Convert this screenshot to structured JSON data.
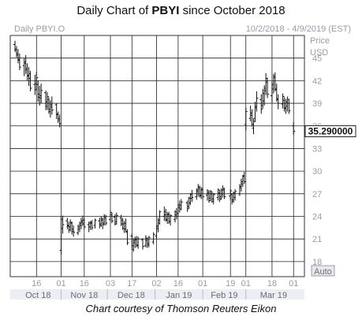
{
  "title": {
    "prefix": "Daily Chart of ",
    "ticker": "PBYI",
    "suffix": " since October 2018"
  },
  "caption": "Chart courtesy of Thomson Reuters Eikon",
  "chart_data": {
    "type": "ohlc",
    "symbol_label": "Daily PBYI.O",
    "date_range": "10/2/2018 - 4/9/2019 (EST)",
    "ylabel": "Price",
    "yunit": "USD",
    "ylim": [
      16,
      48
    ],
    "y_ticks": [
      18,
      21,
      24,
      27,
      30,
      33,
      36,
      39,
      42,
      45
    ],
    "last_price": "35.290000",
    "last_value": 35.29,
    "auto_label": "Auto",
    "x_day_ticks": [
      "16",
      "01",
      "16",
      "03",
      "17",
      "02",
      "16",
      "01",
      "19",
      "01",
      "18",
      "01"
    ],
    "x_month_labels": [
      "Oct 18",
      "Nov 18",
      "Dec 18",
      "Jan 19",
      "Feb 19",
      "Mar 19"
    ],
    "grid": true,
    "series": [
      {
        "x": [
          "2018-10-02",
          "2018-10-03",
          "2018-10-04",
          "2018-10-05",
          "2018-10-08",
          "2018-10-09",
          "2018-10-10",
          "2018-10-11",
          "2018-10-12",
          "2018-10-15",
          "2018-10-16",
          "2018-10-17",
          "2018-10-18",
          "2018-10-19",
          "2018-10-22",
          "2018-10-23",
          "2018-10-24",
          "2018-10-25",
          "2018-10-26",
          "2018-10-29",
          "2018-10-30",
          "2018-10-31",
          "2018-11-01",
          "2018-11-02",
          "2018-11-05",
          "2018-11-06",
          "2018-11-07",
          "2018-11-08",
          "2018-11-09",
          "2018-11-12",
          "2018-11-13",
          "2018-11-14",
          "2018-11-15",
          "2018-11-16",
          "2018-11-19",
          "2018-11-20",
          "2018-11-21",
          "2018-11-23",
          "2018-11-26",
          "2018-11-27",
          "2018-11-28",
          "2018-11-29",
          "2018-11-30",
          "2018-12-03",
          "2018-12-04",
          "2018-12-06",
          "2018-12-07",
          "2018-12-10",
          "2018-12-11",
          "2018-12-12",
          "2018-12-13",
          "2018-12-14",
          "2018-12-17",
          "2018-12-18",
          "2018-12-19",
          "2018-12-20",
          "2018-12-21",
          "2018-12-24",
          "2018-12-26",
          "2018-12-27",
          "2018-12-28",
          "2018-12-31",
          "2019-01-02",
          "2019-01-03",
          "2019-01-04",
          "2019-01-07",
          "2019-01-08",
          "2019-01-09",
          "2019-01-10",
          "2019-01-11",
          "2019-01-14",
          "2019-01-15",
          "2019-01-16",
          "2019-01-17",
          "2019-01-18",
          "2019-01-22",
          "2019-01-23",
          "2019-01-24",
          "2019-01-25",
          "2019-01-28",
          "2019-01-29",
          "2019-01-30",
          "2019-01-31",
          "2019-02-01",
          "2019-02-04",
          "2019-02-05",
          "2019-02-06",
          "2019-02-07",
          "2019-02-08",
          "2019-02-11",
          "2019-02-12",
          "2019-02-13",
          "2019-02-14",
          "2019-02-15",
          "2019-02-19",
          "2019-02-20",
          "2019-02-21",
          "2019-02-22",
          "2019-02-25",
          "2019-02-26",
          "2019-02-27",
          "2019-02-28",
          "2019-03-01",
          "2019-03-04",
          "2019-03-05",
          "2019-03-06",
          "2019-03-07",
          "2019-03-08",
          "2019-03-11",
          "2019-03-12",
          "2019-03-13",
          "2019-03-14",
          "2019-03-15",
          "2019-03-18",
          "2019-03-19",
          "2019-03-20",
          "2019-03-21",
          "2019-03-22",
          "2019-03-25",
          "2019-03-26",
          "2019-03-27",
          "2019-03-28",
          "2019-03-29",
          "2019-04-01"
        ],
        "high": [
          47.3,
          46.6,
          46.2,
          45.6,
          45.0,
          45.4,
          44.3,
          43.8,
          43.3,
          42.8,
          43.2,
          42.0,
          41.3,
          41.6,
          40.7,
          40.5,
          39.8,
          39.4,
          39.9,
          39.0,
          37.9,
          37.5,
          24.0,
          24.1,
          23.8,
          23.3,
          23.6,
          23.3,
          22.8,
          22.9,
          23.3,
          23.8,
          24.1,
          23.8,
          23.3,
          23.4,
          23.5,
          23.7,
          23.8,
          24.0,
          23.8,
          24.3,
          24.2,
          24.8,
          24.5,
          24.3,
          24.5,
          24.2,
          23.8,
          23.4,
          23.7,
          22.3,
          21.7,
          21.1,
          21.3,
          21.4,
          21.3,
          21.1,
          21.5,
          21.2,
          21.4,
          21.9,
          22.9,
          23.8,
          24.8,
          25.3,
          25.0,
          24.6,
          24.6,
          24.3,
          24.8,
          25.1,
          25.7,
          26.1,
          26.3,
          26.1,
          26.6,
          27.1,
          27.5,
          27.7,
          28.3,
          28.1,
          27.9,
          27.8,
          27.6,
          27.4,
          27.5,
          27.3,
          27.1,
          27.7,
          27.5,
          27.7,
          28.1,
          27.8,
          27.6,
          27.1,
          27.3,
          27.6,
          28.3,
          29.0,
          29.5,
          29.9,
          38.4,
          38.7,
          38.2,
          37.0,
          39.2,
          40.6,
          40.2,
          40.9,
          41.4,
          43.0,
          42.4,
          41.8,
          42.9,
          43.1,
          41.6,
          40.2,
          40.3,
          39.8,
          39.6,
          39.9,
          39.6,
          36.5
        ],
        "low": [
          45.8,
          45.1,
          44.3,
          43.4,
          42.6,
          42.9,
          42.0,
          41.3,
          40.6,
          40.1,
          40.7,
          39.2,
          38.7,
          39.0,
          38.1,
          38.1,
          37.6,
          37.1,
          37.5,
          36.9,
          36.4,
          35.8,
          18.9,
          21.7,
          22.3,
          21.8,
          22.0,
          21.6,
          21.3,
          21.5,
          21.9,
          22.3,
          22.7,
          22.3,
          21.9,
          22.2,
          22.2,
          22.4,
          22.4,
          22.6,
          22.3,
          22.8,
          22.8,
          23.3,
          23.1,
          22.8,
          22.9,
          22.7,
          22.2,
          21.8,
          21.9,
          20.2,
          19.7,
          19.3,
          19.8,
          19.9,
          19.7,
          19.6,
          19.9,
          19.8,
          19.9,
          20.3,
          21.1,
          21.9,
          22.9,
          23.4,
          23.3,
          23.0,
          23.0,
          22.8,
          23.2,
          23.6,
          24.1,
          24.5,
          24.8,
          24.6,
          25.0,
          25.5,
          25.9,
          26.2,
          26.6,
          26.5,
          26.3,
          26.3,
          26.1,
          25.8,
          26.0,
          25.8,
          25.6,
          26.1,
          25.9,
          26.2,
          26.5,
          26.3,
          26.2,
          25.6,
          25.8,
          26.1,
          26.7,
          27.3,
          27.9,
          28.3,
          35.4,
          36.6,
          35.9,
          34.9,
          36.5,
          37.9,
          37.6,
          38.3,
          38.7,
          40.1,
          39.7,
          39.1,
          40.3,
          40.6,
          39.2,
          38.2,
          38.3,
          37.9,
          37.6,
          37.9,
          37.6,
          34.8
        ],
        "open": [
          46.8,
          46.2,
          45.6,
          44.7,
          44.0,
          44.3,
          43.6,
          42.6,
          42.3,
          41.5,
          41.6,
          41.5,
          40.2,
          40.0,
          40.4,
          39.2,
          39.5,
          37.9,
          38.5,
          38.8,
          37.5,
          37.0,
          19.5,
          22.4,
          23.4,
          22.8,
          22.6,
          23.1,
          22.3,
          21.8,
          22.3,
          22.8,
          23.2,
          23.5,
          22.9,
          22.6,
          23.1,
          22.8,
          23.4,
          23.0,
          23.5,
          23.1,
          23.8,
          23.6,
          24.2,
          23.9,
          23.3,
          23.8,
          23.5,
          23.0,
          22.3,
          21.9,
          21.4,
          19.6,
          20.5,
          21.0,
          20.2,
          20.9,
          20.1,
          20.8,
          20.4,
          20.6,
          21.4,
          22.4,
          23.1,
          24.0,
          24.6,
          23.5,
          24.2,
          23.3,
          23.6,
          24.2,
          24.4,
          25.2,
          25.5,
          25.8,
          25.3,
          25.8,
          26.4,
          26.6,
          27.3,
          27.7,
          26.8,
          27.5,
          26.8,
          27.1,
          26.4,
          27.0,
          26.3,
          26.5,
          27.1,
          26.6,
          27.0,
          27.5,
          26.7,
          26.9,
          26.2,
          26.5,
          27.0,
          27.8,
          28.3,
          29.3,
          36.2,
          37.0,
          37.7,
          35.7,
          37.0,
          38.4,
          39.5,
          38.7,
          39.3,
          40.7,
          41.8,
          40.0,
          40.9,
          42.4,
          40.8,
          39.5,
          38.9,
          39.4,
          38.4,
          38.6,
          39.0,
          36.0
        ],
        "close": [
          46.1,
          45.4,
          44.8,
          43.8,
          44.5,
          43.4,
          42.7,
          42.9,
          41.0,
          40.8,
          42.4,
          39.8,
          39.7,
          40.7,
          38.6,
          39.9,
          38.2,
          38.8,
          38.1,
          37.6,
          36.8,
          36.3,
          23.6,
          22.9,
          22.7,
          22.2,
          23.2,
          22.0,
          21.9,
          22.6,
          23.1,
          23.4,
          23.0,
          22.6,
          23.1,
          23.2,
          22.5,
          23.5,
          22.8,
          23.7,
          22.9,
          24.0,
          23.1,
          24.5,
          23.4,
          23.0,
          24.1,
          23.0,
          22.4,
          23.1,
          22.0,
          20.5,
          20.1,
          20.8,
          20.9,
          20.1,
          21.0,
          20.0,
          21.1,
          20.2,
          21.2,
          21.6,
          22.7,
          23.5,
          24.6,
          24.2,
          23.6,
          24.3,
          23.3,
          24.1,
          24.6,
          24.0,
          25.5,
          25.0,
          25.9,
          25.0,
          26.4,
          26.9,
          26.5,
          27.5,
          27.9,
          26.7,
          27.6,
          26.6,
          27.4,
          26.1,
          27.3,
          26.0,
          26.9,
          27.5,
          26.3,
          27.5,
          27.7,
          26.6,
          27.4,
          26.0,
          27.1,
          27.3,
          28.0,
          28.6,
          29.4,
          28.6,
          37.9,
          37.4,
          36.2,
          36.6,
          38.6,
          39.7,
          38.2,
          40.3,
          41.0,
          42.3,
          40.2,
          41.5,
          42.6,
          40.9,
          39.6,
          39.0,
          39.9,
          38.3,
          39.2,
          39.5,
          38.0,
          35.3
        ]
      }
    ]
  }
}
